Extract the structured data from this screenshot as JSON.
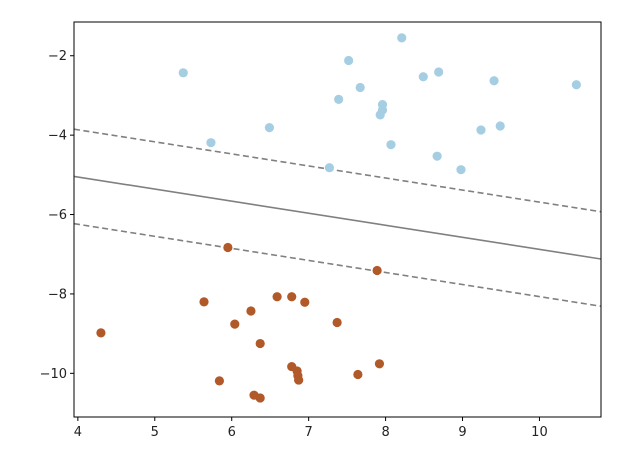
{
  "chart_data": {
    "type": "scatter",
    "title": "",
    "xlabel": "",
    "ylabel": "",
    "xlim": [
      3.95,
      10.8
    ],
    "ylim": [
      -11.1,
      -1.15
    ],
    "xticks": [
      4,
      5,
      6,
      7,
      8,
      9,
      10
    ],
    "yticks": [
      -10,
      -8,
      -6,
      -4,
      -2
    ],
    "xtick_labels": [
      "4",
      "5",
      "6",
      "7",
      "8",
      "9",
      "10"
    ],
    "ytick_labels": [
      "−10",
      "−8",
      "−6",
      "−4",
      "−2"
    ],
    "grid": false,
    "series": [
      {
        "color": "#a6cee3",
        "points": [
          [
            5.37,
            -2.43
          ],
          [
            5.73,
            -4.19
          ],
          [
            6.49,
            -3.81
          ],
          [
            7.27,
            -4.82
          ],
          [
            7.39,
            -3.1
          ],
          [
            7.52,
            -2.12
          ],
          [
            7.67,
            -2.8
          ],
          [
            7.93,
            -3.49
          ],
          [
            7.96,
            -3.23
          ],
          [
            7.96,
            -3.37
          ],
          [
            8.07,
            -4.24
          ],
          [
            8.21,
            -1.55
          ],
          [
            8.49,
            -2.53
          ],
          [
            8.67,
            -4.53
          ],
          [
            8.69,
            -2.41
          ],
          [
            8.98,
            -4.87
          ],
          [
            9.24,
            -3.87
          ],
          [
            9.41,
            -2.63
          ],
          [
            9.49,
            -3.77
          ],
          [
            10.48,
            -2.73
          ]
        ]
      },
      {
        "color": "#b15928",
        "points": [
          [
            4.3,
            -8.98
          ],
          [
            5.64,
            -8.2
          ],
          [
            5.84,
            -10.19
          ],
          [
            5.95,
            -6.83
          ],
          [
            6.04,
            -8.76
          ],
          [
            6.25,
            -8.43
          ],
          [
            6.29,
            -10.55
          ],
          [
            6.37,
            -9.25
          ],
          [
            6.37,
            -10.62
          ],
          [
            6.59,
            -8.07
          ],
          [
            6.78,
            -8.07
          ],
          [
            6.78,
            -9.83
          ],
          [
            6.85,
            -9.94
          ],
          [
            6.86,
            -10.06
          ],
          [
            6.87,
            -10.17
          ],
          [
            6.95,
            -8.21
          ],
          [
            7.37,
            -8.72
          ],
          [
            7.64,
            -10.03
          ],
          [
            7.89,
            -7.41
          ],
          [
            7.92,
            -9.76
          ]
        ]
      }
    ],
    "lines": [
      {
        "style": "solid",
        "points": [
          [
            3.95,
            -5.04
          ],
          [
            10.8,
            -7.12
          ]
        ]
      },
      {
        "style": "dashed",
        "points": [
          [
            3.95,
            -3.85
          ],
          [
            10.8,
            -5.93
          ]
        ]
      },
      {
        "style": "dashed",
        "points": [
          [
            3.95,
            -6.23
          ],
          [
            10.8,
            -8.31
          ]
        ]
      }
    ],
    "line_color": "#808080"
  }
}
